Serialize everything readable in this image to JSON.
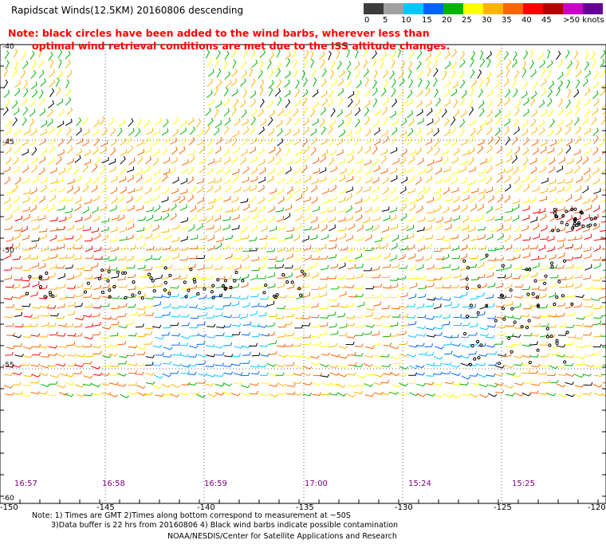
{
  "title": "Rapidscat Winds(12.5KM) 20160806 descending",
  "note_lines": [
    "Note: black circles have been added to the wind barbs, wherever less than",
    "optimal wind retrieval conditions are met due to the ISS altitude changes."
  ],
  "colorbar": {
    "labels": [
      "0",
      "5",
      "10",
      "15",
      "20",
      "25",
      "30",
      "35",
      "40",
      "45",
      ">50 knots"
    ],
    "colors": [
      "#3c3c3c",
      "#a0a0a0",
      "#00c8ff",
      "#0064ff",
      "#00b400",
      "#ffff00",
      "#ffb400",
      "#ff6400",
      "#ff0000",
      "#b40000",
      "#c800c8",
      "#640096"
    ]
  },
  "map": {
    "lon_labels": [
      "-150",
      "-145",
      "-140",
      "-135",
      "-130",
      "-125",
      "-120"
    ],
    "lat_labels": [
      "-40",
      "-45",
      "-50",
      "-55",
      "-60"
    ],
    "time_labels": [
      "16:57",
      "16:58",
      "16:59",
      "17:00",
      "15:24",
      "15:25"
    ]
  },
  "footer": {
    "line1": "Note: 1) Times are GMT 2)Times along bottom correspond to measurement at ~50S",
    "line2": "3)Data buffer is 22 hrs from 20160806 4) Black wind barbs indicate possible contamination",
    "line3": "NOAA/NESDIS/Center for Satellite Applications and Research"
  }
}
